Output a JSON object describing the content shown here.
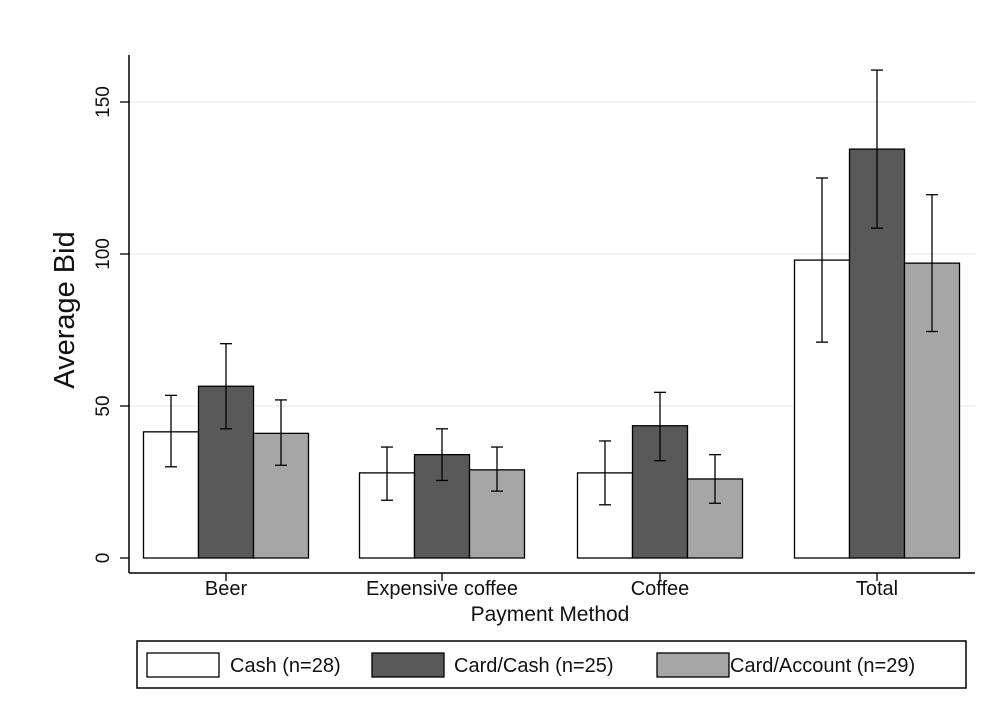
{
  "chart_data": {
    "type": "bar",
    "title": "",
    "xlabel": "Payment Method",
    "ylabel": "Average Bid",
    "ylim": [
      0,
      160
    ],
    "yticks": [
      0,
      50,
      100,
      150
    ],
    "grid": true,
    "legend_position": "bottom",
    "categories": [
      "Beer",
      "Expensive coffee",
      "Coffee",
      "Total"
    ],
    "series": [
      {
        "name": "Cash (n=28)",
        "color": "#ffffff",
        "values": [
          41.5,
          28,
          28,
          98
        ],
        "error_low": [
          30,
          19,
          17.5,
          71
        ],
        "error_high": [
          53.5,
          36.5,
          38.5,
          125
        ]
      },
      {
        "name": "Card/Cash (n=25)",
        "color": "#595959",
        "values": [
          56.5,
          34,
          43.5,
          134.5
        ],
        "error_low": [
          42.5,
          25.5,
          32,
          108.5
        ],
        "error_high": [
          70.5,
          42.5,
          54.5,
          160.5
        ]
      },
      {
        "name": "Card/Account (n=29)",
        "color": "#a6a6a6",
        "values": [
          41,
          29,
          26,
          97
        ],
        "error_low": [
          30.5,
          22,
          18,
          74.5
        ],
        "error_high": [
          52,
          36.5,
          34,
          119.5
        ]
      }
    ]
  }
}
